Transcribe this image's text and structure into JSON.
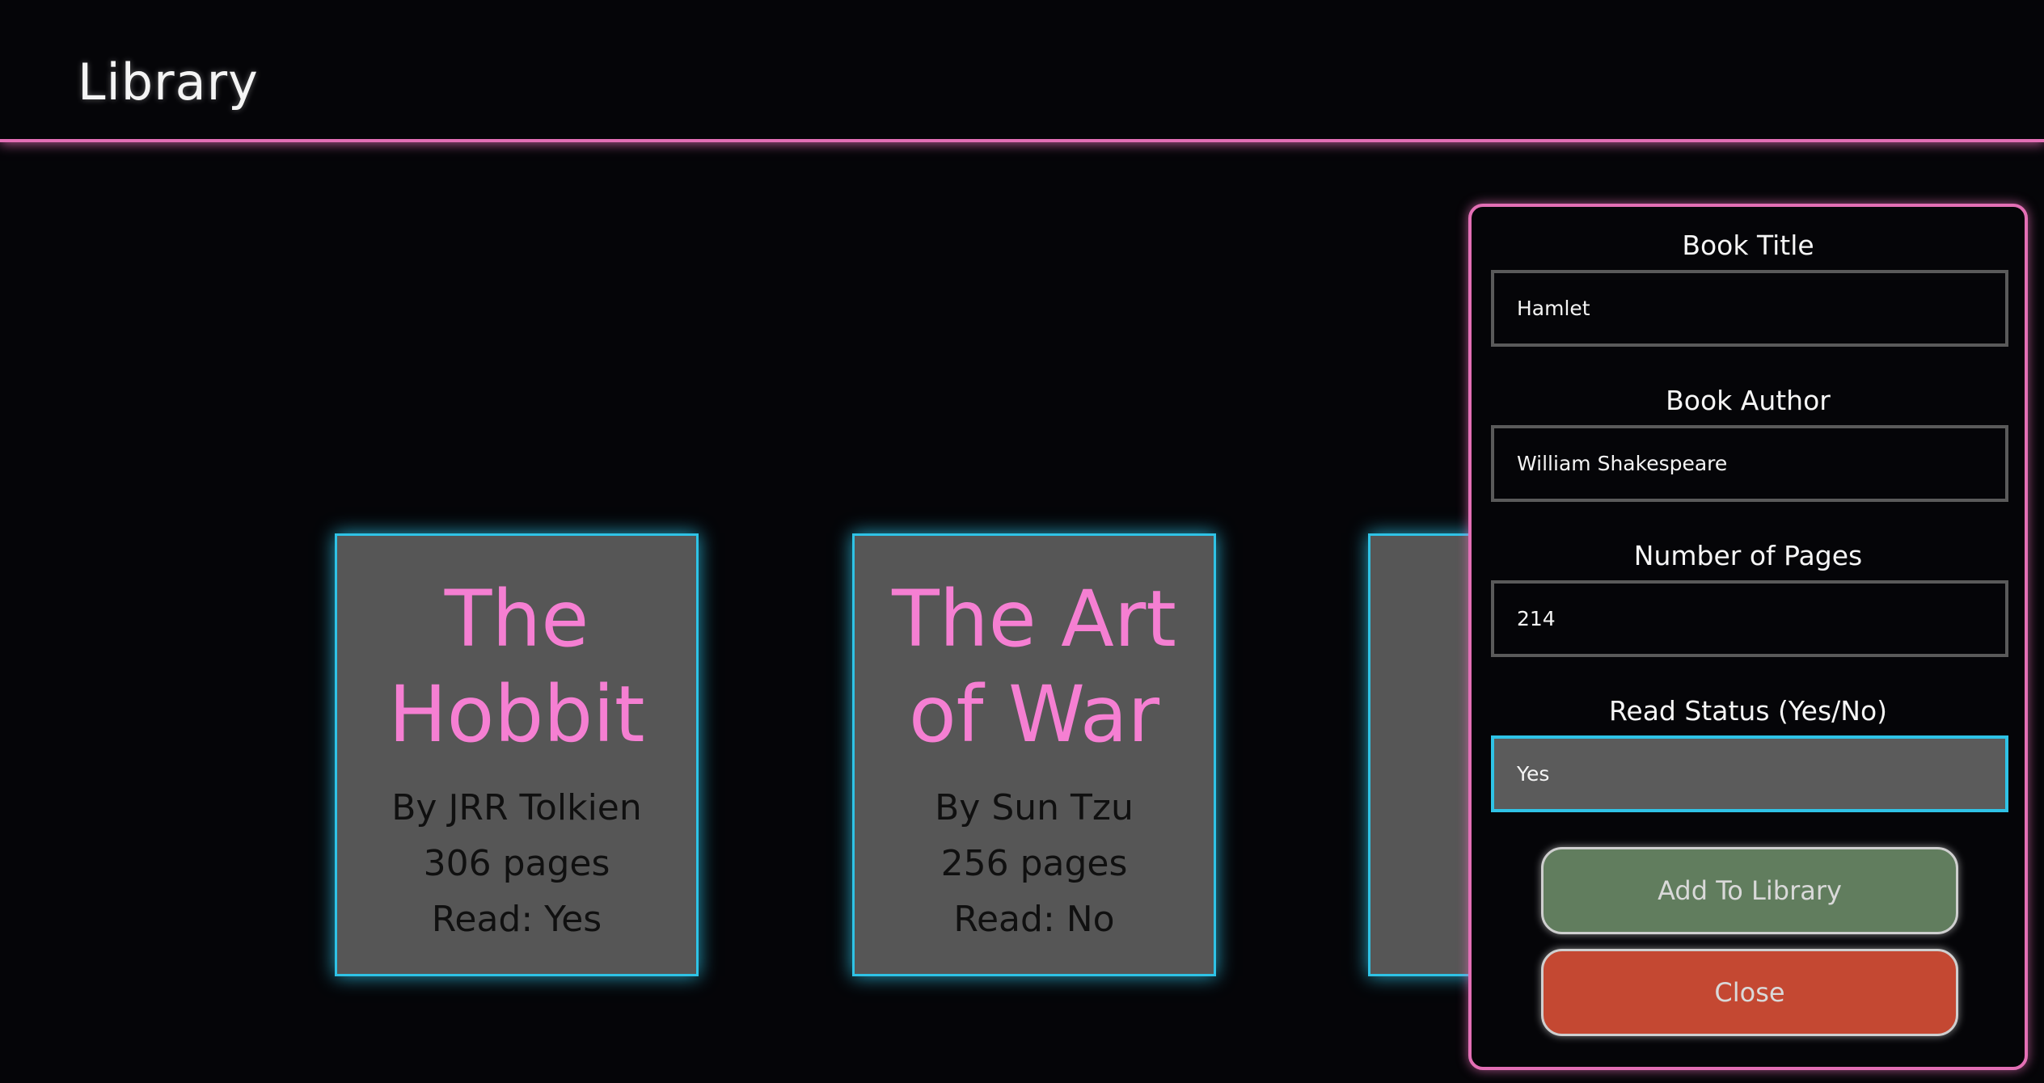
{
  "header": {
    "title": "Library"
  },
  "books": [
    {
      "title": "The Hobbit",
      "author": "By JRR Tolkien",
      "pages": "306 pages",
      "read": "Read: Yes"
    },
    {
      "title": "The Art of War",
      "author": "By Sun Tzu",
      "pages": "256 pages",
      "read": "Read: No"
    }
  ],
  "form": {
    "title_label": "Book Title",
    "title_value": "Hamlet",
    "author_label": "Book Author",
    "author_value": "William Shakespeare",
    "pages_label": "Number of Pages",
    "pages_value": "214",
    "read_label": "Read Status (Yes/No)",
    "read_value": "Yes",
    "add_button": "Add To Library",
    "close_button": "Close"
  },
  "colors": {
    "accent_pink": "#e36fb5",
    "card_border": "#2fc3e6",
    "card_title": "#f57fd2",
    "add_button": "#617d5e",
    "close_button": "#c44832"
  }
}
